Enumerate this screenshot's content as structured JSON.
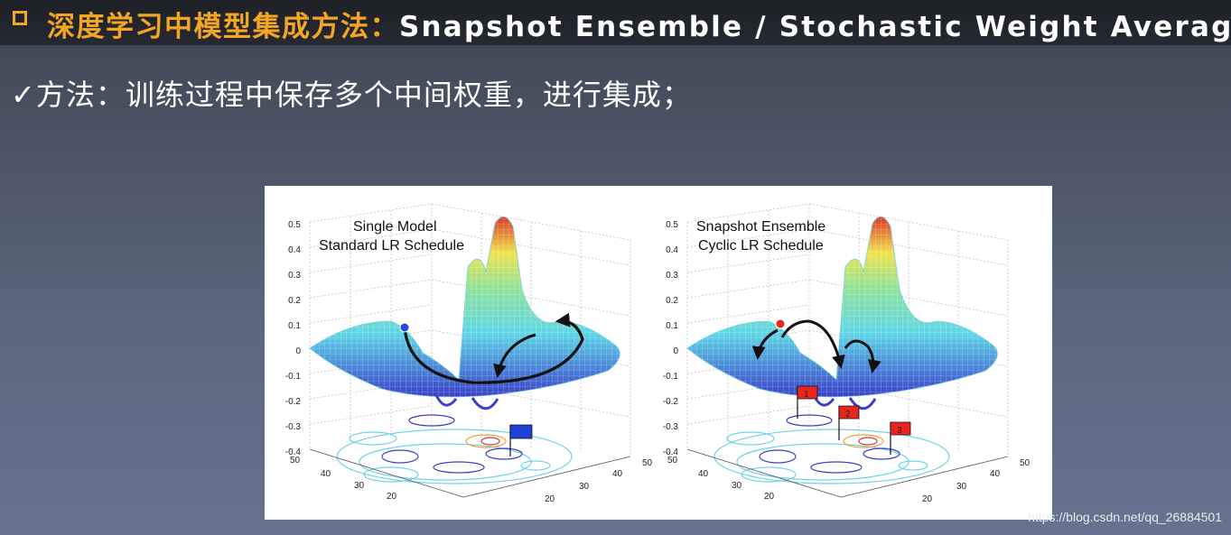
{
  "slide": {
    "title_cn": "深度学习中模型集成方法：",
    "title_en": "Snapshot Ensemble / Stochastic Weight Averaging",
    "bullet_text": "✓方法：训练过程中保存多个中间权重，进行集成；"
  },
  "figure": {
    "left_panel": {
      "label_line1": "Single Model",
      "label_line2": "Standard LR Schedule"
    },
    "right_panel": {
      "label_line1": "Snapshot Ensemble",
      "label_line2": "Cyclic LR Schedule",
      "flag_labels": [
        "1",
        "2",
        "3"
      ]
    },
    "z_ticks": [
      "0.5",
      "0.4",
      "0.3",
      "0.2",
      "0.1",
      "0",
      "-0.1",
      "-0.2",
      "-0.3",
      "-0.4"
    ],
    "y_ticks": [
      "50",
      "40",
      "30",
      "20"
    ],
    "x_ticks": [
      "20",
      "30",
      "40",
      "50"
    ],
    "colors": {
      "surface_low": "#3a3fc9",
      "surface_mid": "#5fd6e8",
      "surface_high": "#f0e24a",
      "surface_peak": "#d9382a",
      "left_flag": "#1f3fd6",
      "right_flag": "#e8261f"
    }
  },
  "watermark": "https://blog.csdn.net/qq_26884501"
}
